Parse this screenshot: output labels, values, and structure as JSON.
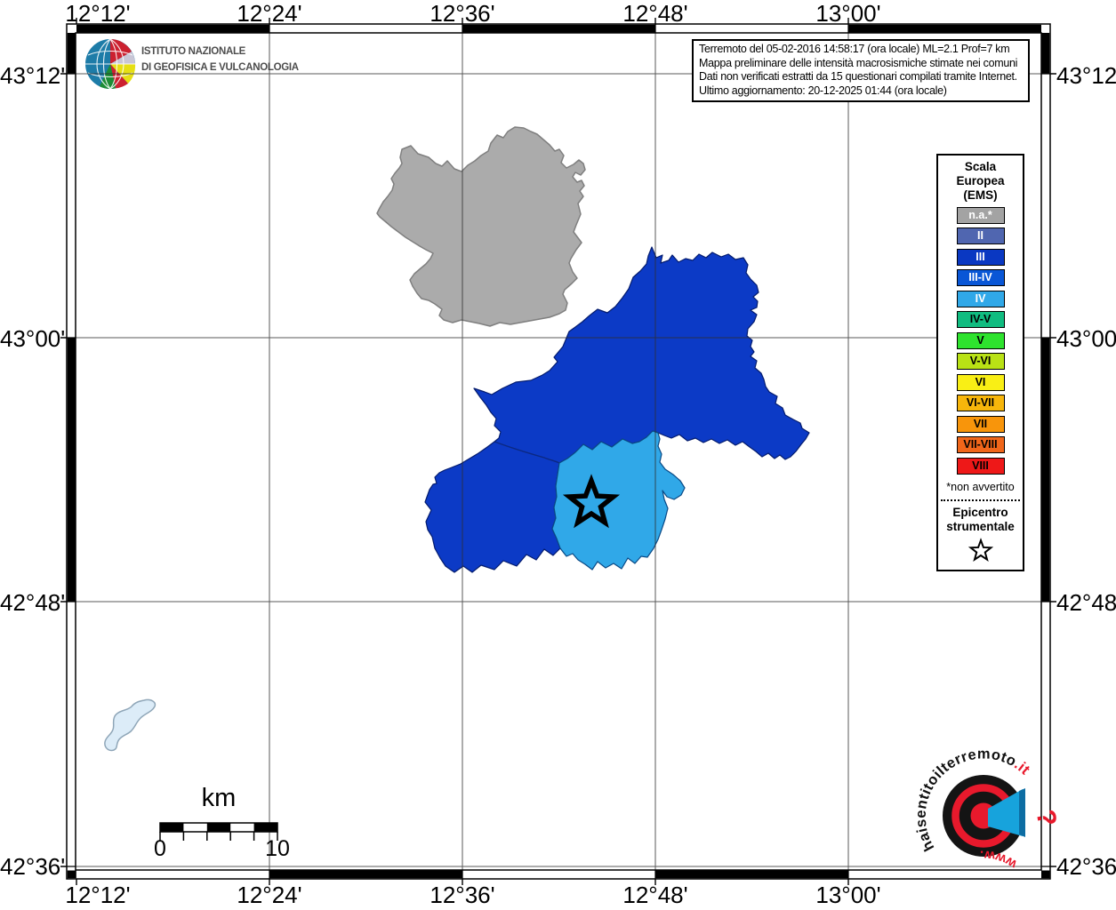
{
  "branding": {
    "ingv": {
      "line1": "ISTITUTO NAZIONALE",
      "line2": "DI GEOFISICA E VULCANOLOGIA"
    },
    "hsit": {
      "text_main": "haisentitoilterremoto",
      "text_it": ".it",
      "text_www": "www.",
      "text_q": "?",
      "red": "#e8192c",
      "blue": "#17a3dc"
    }
  },
  "info_box": {
    "lines": [
      "Terremoto del 05-02-2016 14:58:17 (ora locale) ML=2.1 Prof=7 km",
      "Mappa preliminare delle intensità macrosismiche stimate nei comuni",
      "Dati non verificati estratti da 15 questionari compilati tramite Internet.",
      "Ultimo aggiornamento: 20-12-2025 01:44 (ora locale)"
    ]
  },
  "axes": {
    "top": [
      "12°12'",
      "12°24'",
      "12°36'",
      "12°48'",
      "13°00'"
    ],
    "bottom": [
      "12°12'",
      "12°24'",
      "12°36'",
      "12°48'",
      "13°00'"
    ],
    "left": [
      "43°12'",
      "43°00'",
      "42°48'",
      "42°36'"
    ],
    "right": [
      "43°12'",
      "43°00'",
      "42°48'",
      "42°36'"
    ]
  },
  "legend": {
    "title_lines": [
      "Scala",
      "Europea",
      "(EMS)"
    ],
    "items": [
      {
        "label": "n.a.*",
        "color": "#a3a3a3",
        "text_color": "#ffffff"
      },
      {
        "label": "II",
        "color": "#5066b0",
        "text_color": "#ffffff"
      },
      {
        "label": "III",
        "color": "#0a38c2",
        "text_color": "#ffffff"
      },
      {
        "label": "III-IV",
        "color": "#0956d6",
        "text_color": "#ffffff"
      },
      {
        "label": "IV",
        "color": "#30a8e8",
        "text_color": "#ffffff"
      },
      {
        "label": "IV-V",
        "color": "#10bc80",
        "text_color": "#000000"
      },
      {
        "label": "V",
        "color": "#2ee32e",
        "text_color": "#000000"
      },
      {
        "label": "V-VI",
        "color": "#b9e215",
        "text_color": "#000000"
      },
      {
        "label": "VI",
        "color": "#f9ef15",
        "text_color": "#000000"
      },
      {
        "label": "VI-VII",
        "color": "#f7b60b",
        "text_color": "#000000"
      },
      {
        "label": "VII",
        "color": "#f8950b",
        "text_color": "#000000"
      },
      {
        "label": "VII-VIII",
        "color": "#f0661a",
        "text_color": "#000000"
      },
      {
        "label": "VIII",
        "color": "#ee1818",
        "text_color": "#000000"
      }
    ],
    "footnote": "*non avvertito",
    "epicenter_lines": [
      "Epicentro",
      "strumentale"
    ]
  },
  "scale_bar": {
    "title": "km",
    "start_label": "0",
    "end_label": "10"
  },
  "map": {
    "colors": {
      "na": "#ababab",
      "intensity_iii": "#0c3ac6",
      "intensity_iv": "#30a8e8",
      "water": "#dcecf8"
    }
  }
}
